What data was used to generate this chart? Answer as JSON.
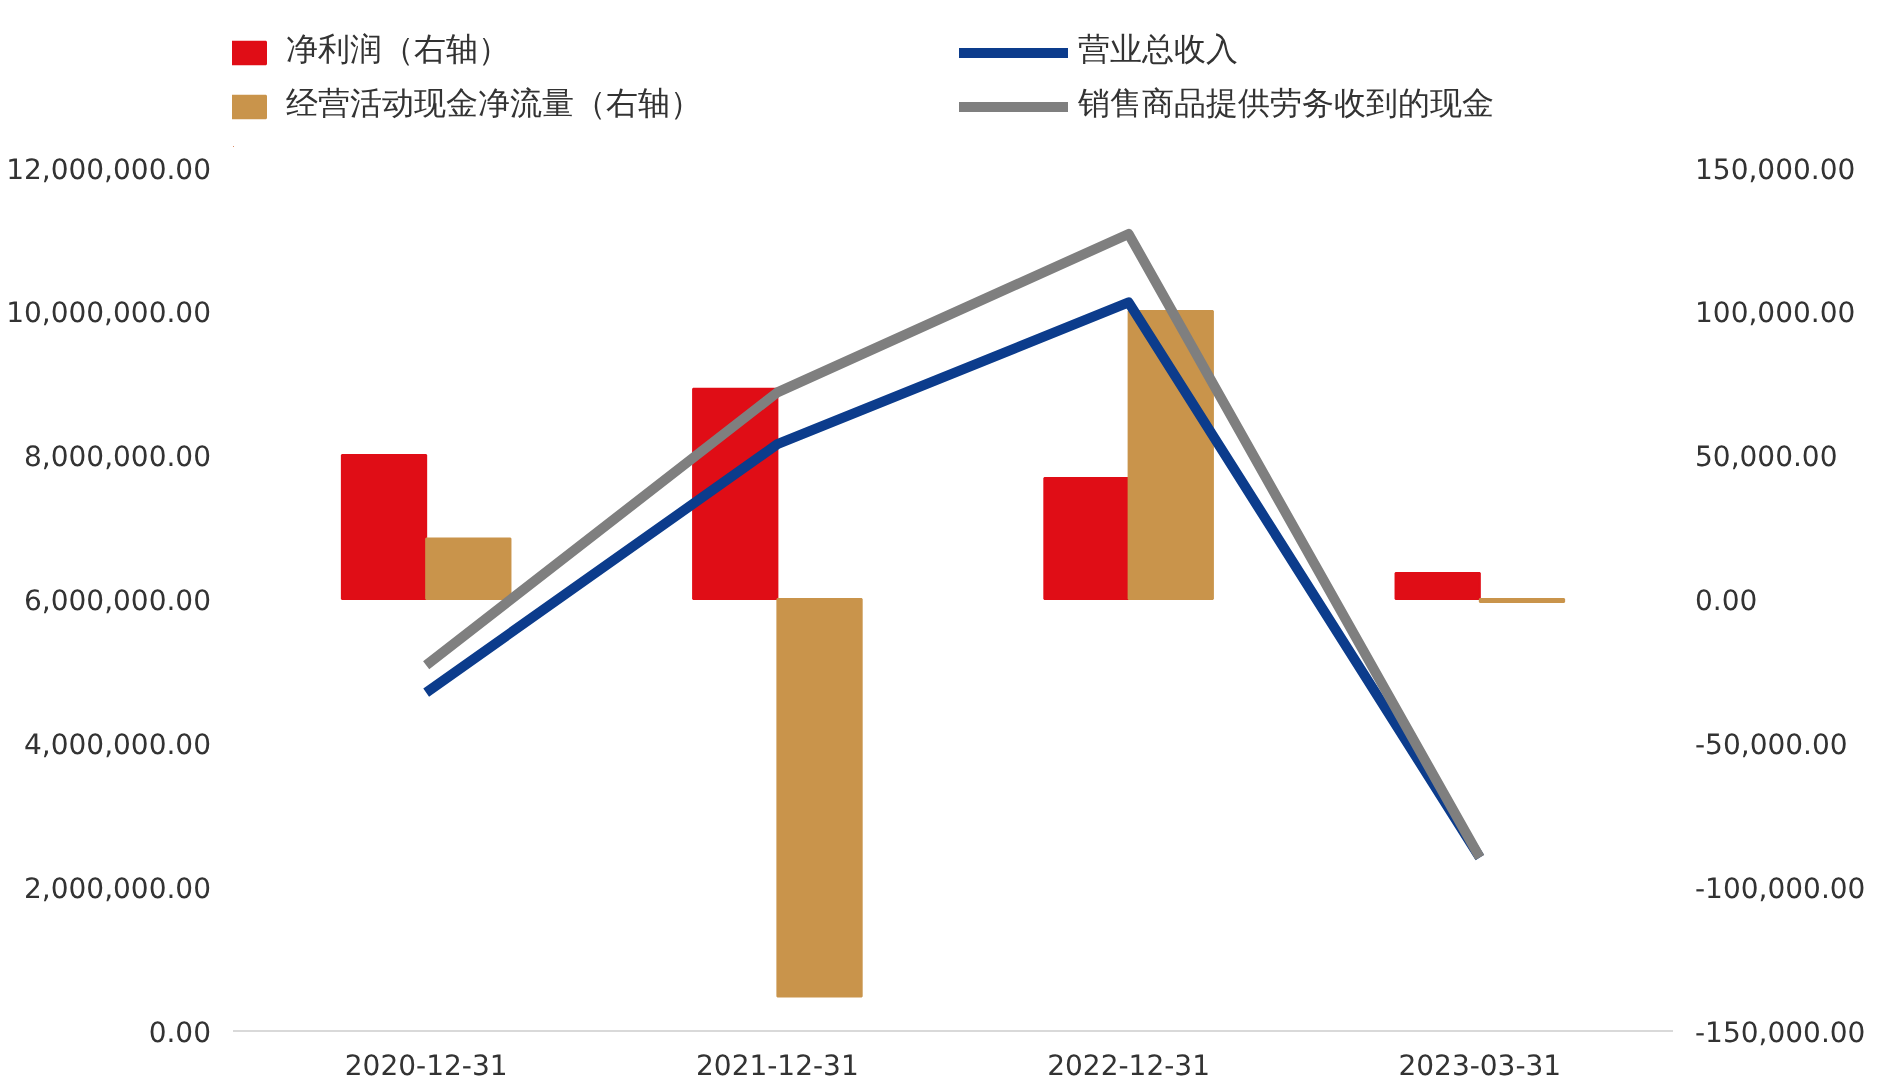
{
  "chart_data": {
    "type": "bar",
    "categories": [
      "2020-12-31",
      "2021-12-31",
      "2022-12-31",
      "2023-03-31"
    ],
    "series": [
      {
        "name": "净利润（右轴）",
        "color": "#e00d16",
        "axis": "y2",
        "values": [
          50000,
          73000,
          42000,
          9000
        ]
      },
      {
        "name": "经营活动现金净流量（右轴）",
        "color": "#c9944b",
        "axis": "y2",
        "values": [
          21000,
          -138000,
          100000,
          -1000
        ]
      },
      {
        "name": "营业总收入",
        "type": "line",
        "color": "#0c3c8c",
        "values": [
          4700000,
          8150000,
          10120000,
          2410000
        ]
      },
      {
        "name": "销售商品提供劳务收到的现金",
        "type": "line",
        "color": "#7f7f7f",
        "values": [
          5080000,
          8870000,
          11070000,
          2410000
        ]
      }
    ],
    "ylim": [
      0,
      12000000
    ],
    "yticks": [
      {
        "value": 0,
        "label": "0.00"
      },
      {
        "value": 2000000,
        "label": "2,000,000.00"
      },
      {
        "value": 4000000,
        "label": "4,000,000.00"
      },
      {
        "value": 6000000,
        "label": "6,000,000.00"
      },
      {
        "value": 8000000,
        "label": "8,000,000.00"
      },
      {
        "value": 10000000,
        "label": "10,000,000.00"
      },
      {
        "value": 12000000,
        "label": "12,000,000.00"
      }
    ],
    "y2lim": [
      -150000,
      150000
    ],
    "y2ticks": [
      {
        "value": -150000,
        "label": "-150,000.00"
      },
      {
        "value": -100000,
        "label": "-100,000.00"
      },
      {
        "value": -50000,
        "label": "-50,000.00"
      },
      {
        "value": 0,
        "label": "0.00"
      },
      {
        "value": 50000,
        "label": "50,000.00"
      },
      {
        "value": 100000,
        "label": "100,000.00"
      },
      {
        "value": 150000,
        "label": "150,000.00"
      }
    ],
    "grid": false,
    "legend": "top"
  }
}
